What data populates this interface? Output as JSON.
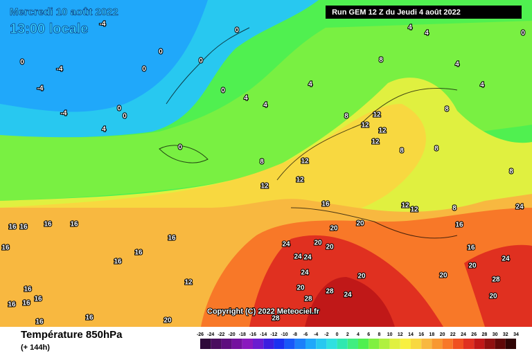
{
  "header": {
    "date": "Mercredi 10 août 2022",
    "time": "13:00 locale",
    "run": "Run GEM 12 Z du Jeudi 4 août 2022"
  },
  "copyright": "Copyright (C) 2022 Meteociel.fr",
  "legend": {
    "title": "Température 850hPa",
    "subtitle": "(+ 144h)",
    "ticks": [
      -26,
      -24,
      -22,
      -20,
      -18,
      -16,
      -14,
      -12,
      -10,
      -8,
      -6,
      -4,
      -2,
      0,
      2,
      4,
      6,
      8,
      10,
      12,
      14,
      16,
      18,
      20,
      22,
      24,
      26,
      28,
      30,
      32,
      34
    ],
    "colors": [
      "#2e0a3a",
      "#4a0d5e",
      "#5e0e7e",
      "#74119e",
      "#8a18be",
      "#6a1cd0",
      "#3c1ee0",
      "#1b30f0",
      "#1858f8",
      "#1c80fa",
      "#20a8fa",
      "#28c8f0",
      "#30e0e0",
      "#30e8b0",
      "#40ee80",
      "#50f050",
      "#80f040",
      "#b0f040",
      "#e0f040",
      "#f8f040",
      "#f8d840",
      "#f8b840",
      "#f89830",
      "#f87828",
      "#f05020",
      "#e03020",
      "#c01818",
      "#901010",
      "#600808",
      "#300404"
    ]
  },
  "map": {
    "labels": [
      0,
      0,
      0,
      0,
      0,
      0,
      0,
      0,
      0,
      0,
      -4,
      -4,
      -4,
      -4,
      4,
      4,
      4,
      4,
      4,
      4,
      4,
      4,
      8,
      8,
      8,
      8,
      8,
      8,
      8,
      8,
      12,
      12,
      12,
      12,
      12,
      12,
      12,
      12,
      12,
      12,
      16,
      16,
      16,
      16,
      16,
      16,
      16,
      16,
      16,
      16,
      16,
      16,
      16,
      16,
      16,
      16,
      16,
      20,
      20,
      20,
      20,
      20,
      20,
      20,
      20,
      20,
      20,
      24,
      24,
      24,
      24,
      24,
      24,
      24,
      28,
      28,
      28,
      28
    ]
  }
}
